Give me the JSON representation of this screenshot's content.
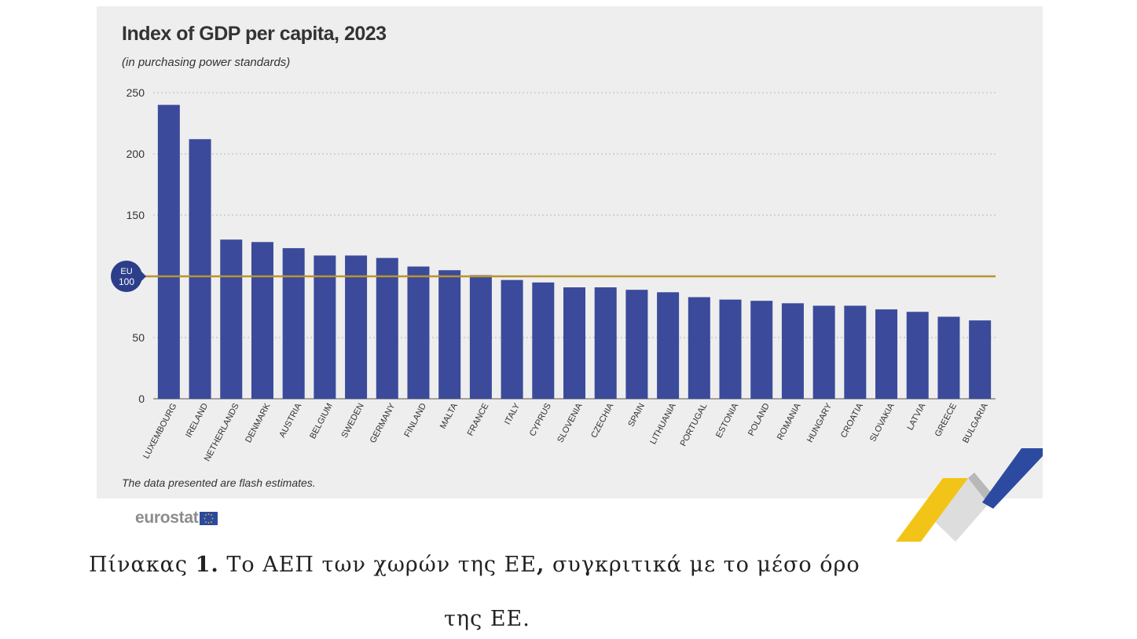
{
  "chart_data": {
    "type": "bar",
    "title": "Index of GDP per capita, 2023",
    "subtitle": "(in purchasing power standards)",
    "categories": [
      "LUXEMBOURG",
      "IRELAND",
      "NETHERLANDS",
      "DENMARK",
      "AUSTRIA",
      "BELGIUM",
      "SWEDEN",
      "GERMANY",
      "FINLAND",
      "MALTA",
      "FRANCE",
      "ITALY",
      "CYPRUS",
      "SLOVENIA",
      "CZECHIA",
      "SPAIN",
      "LITHUANIA",
      "PORTUGAL",
      "ESTONIA",
      "POLAND",
      "ROMANIA",
      "HUNGARY",
      "CROATIA",
      "SLOVAKIA",
      "LATVIA",
      "GREECE",
      "BULGARIA"
    ],
    "values": [
      240,
      212,
      130,
      128,
      123,
      117,
      117,
      115,
      108,
      105,
      101,
      97,
      95,
      91,
      91,
      89,
      87,
      83,
      81,
      80,
      78,
      76,
      76,
      73,
      71,
      67,
      64
    ],
    "yticks": [
      "0",
      "50",
      "150",
      "200",
      "250"
    ],
    "ylim": [
      0,
      250
    ],
    "reference_line": {
      "value": 100,
      "label_top": "EU",
      "label_bottom": "100",
      "color": "#b8952e"
    },
    "bar_color": "#3b4a9a",
    "grid": true,
    "footnote": "The data presented are flash estimates."
  },
  "logo": {
    "text": "eurostat"
  },
  "caption": {
    "line1_prefix": "Πίνακας ",
    "line1_number": "1.",
    "line1_rest": " Το ΑΕΠ των χωρών της ΕΕ",
    "line1_comma": ",",
    "line1_end": " συγκριτικά με το μέσο όρο",
    "line2": "της ΕΕ."
  }
}
